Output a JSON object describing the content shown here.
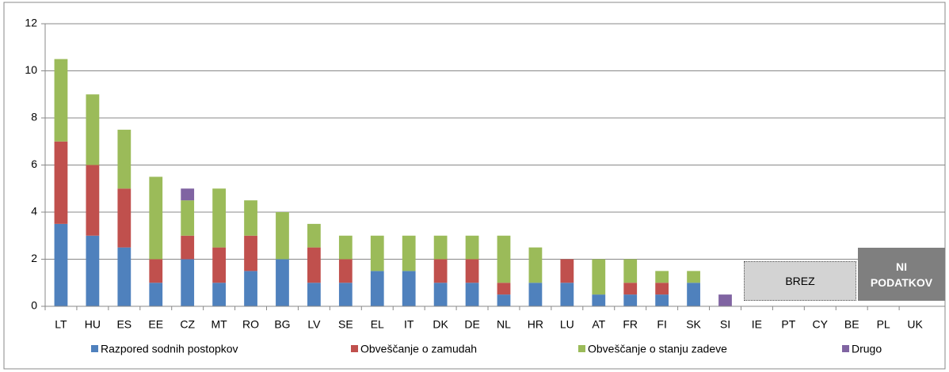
{
  "chart_data": {
    "type": "stacked_bar",
    "categories": [
      "LT",
      "HU",
      "ES",
      "EE",
      "CZ",
      "MT",
      "RO",
      "BG",
      "LV",
      "SE",
      "EL",
      "IT",
      "DK",
      "DE",
      "NL",
      "HR",
      "LU",
      "AT",
      "FR",
      "FI",
      "SK",
      "SI",
      "IE",
      "PT",
      "CY",
      "BE",
      "PL",
      "UK"
    ],
    "series": [
      {
        "name": "Razpored sodnih postopkov",
        "color": "#4f81bd",
        "values": [
          3.5,
          3,
          2.5,
          1,
          2,
          1,
          1.5,
          2,
          1,
          1,
          1.5,
          1.5,
          1,
          1,
          0.5,
          1,
          1,
          0.5,
          0.5,
          0.5,
          1,
          0,
          0,
          0,
          0,
          0,
          null,
          null
        ]
      },
      {
        "name": "Obveščanje o zamudah",
        "color": "#c0504d",
        "values": [
          3.5,
          3,
          2.5,
          1,
          1,
          1.5,
          1.5,
          0,
          1.5,
          1,
          0,
          0,
          1,
          1,
          0.5,
          0,
          1,
          0,
          0.5,
          0.5,
          0,
          0,
          0,
          0,
          0,
          0,
          null,
          null
        ]
      },
      {
        "name": "Obveščanje o stanju zadeve",
        "color": "#9bbb59",
        "values": [
          3.5,
          3,
          2.5,
          3.5,
          1.5,
          2.5,
          1.5,
          2,
          1,
          1,
          1.5,
          1.5,
          1,
          1,
          2,
          1.5,
          0,
          1.5,
          1,
          0.5,
          0.5,
          0,
          0,
          0,
          0,
          0,
          null,
          null
        ]
      },
      {
        "name": "Drugo",
        "color": "#8064a2",
        "values": [
          0,
          0,
          0,
          0,
          0.5,
          0,
          0,
          0,
          0,
          0,
          0,
          0,
          0,
          0,
          0,
          0,
          0,
          0,
          0,
          0,
          0,
          0.5,
          0,
          0,
          0,
          0,
          null,
          null
        ]
      }
    ],
    "ylim": [
      0,
      12
    ],
    "yticks": [
      0,
      2,
      4,
      6,
      8,
      10,
      12
    ],
    "grid": true,
    "legend": "bottom",
    "annotations": [
      "BREZ",
      "NI PODATKOV"
    ]
  }
}
